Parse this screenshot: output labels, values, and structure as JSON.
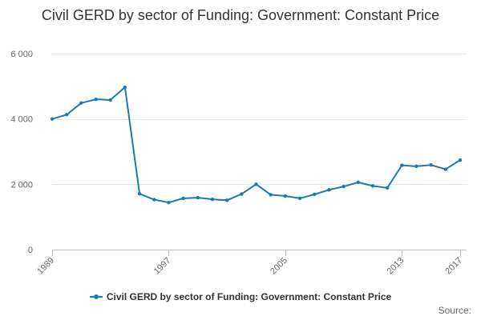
{
  "chart_data": {
    "type": "line",
    "title": "Civil GERD by sector of Funding: Government: Constant Price",
    "xlabel": "",
    "ylabel": "",
    "x": [
      1989,
      1990,
      1991,
      1992,
      1993,
      1994,
      1995,
      1996,
      1997,
      1998,
      1999,
      2000,
      2001,
      2002,
      2003,
      2004,
      2005,
      2006,
      2007,
      2008,
      2009,
      2010,
      2011,
      2012,
      2013,
      2014,
      2015,
      2016,
      2017
    ],
    "series": [
      {
        "name": "Civil GERD by sector of Funding: Government: Constant Price",
        "color": "#1a7ab5",
        "values": [
          4000,
          4130,
          4490,
          4600,
          4580,
          4970,
          1710,
          1530,
          1440,
          1570,
          1590,
          1540,
          1510,
          1700,
          2000,
          1680,
          1640,
          1570,
          1690,
          1830,
          1930,
          2060,
          1950,
          1890,
          2580,
          2550,
          2590,
          2460,
          2740
        ]
      }
    ],
    "xlim": [
      1989,
      2017
    ],
    "ylim": [
      0,
      6000
    ],
    "y_ticks": [
      0,
      2000,
      4000,
      6000
    ],
    "y_tick_labels": [
      "0",
      "2 000",
      "4 000",
      "6 000"
    ],
    "x_ticks": [
      1989,
      1997,
      2005,
      2013,
      2017
    ],
    "x_tick_labels": [
      "1989",
      "1997",
      "2005",
      "2013",
      "2017"
    ],
    "grid": "horizontal",
    "legend": "bottom-center",
    "source_label": "Source:"
  }
}
